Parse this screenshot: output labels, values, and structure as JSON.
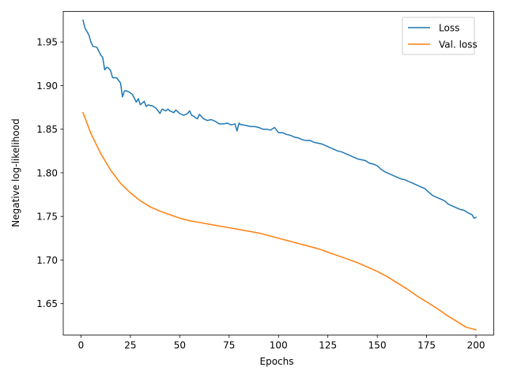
{
  "chart_data": {
    "type": "line",
    "title": "",
    "xlabel": "Epochs",
    "ylabel": "Negative log-likelihood",
    "xlim": [
      -9,
      209
    ],
    "ylim": [
      1.614,
      1.985
    ],
    "x_ticks": [
      0,
      25,
      50,
      75,
      100,
      125,
      150,
      175,
      200
    ],
    "x_tick_labels": [
      "0",
      "25",
      "50",
      "75",
      "100",
      "125",
      "150",
      "175",
      "200"
    ],
    "y_ticks": [
      1.65,
      1.7,
      1.75,
      1.8,
      1.85,
      1.9,
      1.95
    ],
    "y_tick_labels": [
      "1.65",
      "1.70",
      "1.75",
      "1.80",
      "1.85",
      "1.90",
      "1.95"
    ],
    "grid": false,
    "legend": {
      "position": "top-right",
      "entries": [
        "Loss",
        "Val. loss"
      ]
    },
    "series": [
      {
        "name": "Loss",
        "color": "#1f77b4",
        "x": [
          1,
          2,
          3,
          4,
          5,
          6,
          8,
          10,
          11,
          12,
          13,
          14,
          15,
          16,
          18,
          20,
          21,
          22,
          23,
          24,
          26,
          28,
          29,
          30,
          31,
          32,
          33,
          34,
          35,
          36,
          38,
          40,
          41,
          42,
          43,
          44,
          45,
          46,
          47,
          48,
          50,
          52,
          54,
          55,
          56,
          57,
          58,
          59,
          60,
          62,
          64,
          66,
          68,
          70,
          72,
          74,
          76,
          78,
          79,
          80,
          81,
          82,
          84,
          86,
          88,
          90,
          92,
          94,
          96,
          98,
          100,
          102,
          104,
          106,
          108,
          110,
          112,
          114,
          116,
          118,
          120,
          122,
          124,
          126,
          128,
          130,
          132,
          134,
          136,
          138,
          140,
          142,
          144,
          146,
          148,
          150,
          152,
          154,
          156,
          158,
          160,
          162,
          164,
          166,
          168,
          170,
          172,
          174,
          176,
          178,
          180,
          182,
          184,
          186,
          188,
          190,
          192,
          194,
          196,
          198,
          199,
          200
        ],
        "values": [
          1.975,
          1.966,
          1.962,
          1.958,
          1.95,
          1.945,
          1.944,
          1.935,
          1.932,
          1.918,
          1.921,
          1.92,
          1.917,
          1.909,
          1.909,
          1.903,
          1.887,
          1.894,
          1.894,
          1.893,
          1.89,
          1.881,
          1.885,
          1.878,
          1.88,
          1.882,
          1.876,
          1.878,
          1.877,
          1.877,
          1.874,
          1.868,
          1.873,
          1.872,
          1.871,
          1.873,
          1.871,
          1.87,
          1.869,
          1.872,
          1.868,
          1.866,
          1.868,
          1.871,
          1.866,
          1.865,
          1.863,
          1.862,
          1.867,
          1.862,
          1.86,
          1.861,
          1.859,
          1.856,
          1.856,
          1.857,
          1.855,
          1.856,
          1.848,
          1.857,
          1.855,
          1.855,
          1.854,
          1.853,
          1.853,
          1.852,
          1.85,
          1.85,
          1.849,
          1.852,
          1.846,
          1.846,
          1.844,
          1.843,
          1.841,
          1.84,
          1.838,
          1.837,
          1.837,
          1.835,
          1.834,
          1.833,
          1.831,
          1.829,
          1.827,
          1.825,
          1.824,
          1.822,
          1.82,
          1.818,
          1.816,
          1.815,
          1.814,
          1.811,
          1.81,
          1.808,
          1.804,
          1.801,
          1.799,
          1.797,
          1.795,
          1.793,
          1.792,
          1.79,
          1.788,
          1.786,
          1.784,
          1.782,
          1.778,
          1.774,
          1.772,
          1.77,
          1.768,
          1.764,
          1.762,
          1.76,
          1.758,
          1.757,
          1.754,
          1.752,
          1.748,
          1.749
        ]
      },
      {
        "name": "Val. loss",
        "color": "#ff7f0e",
        "x": [
          1,
          5,
          10,
          15,
          20,
          25,
          30,
          35,
          40,
          45,
          50,
          55,
          60,
          65,
          70,
          75,
          80,
          85,
          90,
          95,
          100,
          105,
          110,
          115,
          120,
          125,
          130,
          135,
          140,
          145,
          150,
          155,
          160,
          165,
          170,
          175,
          180,
          185,
          190,
          195,
          200
        ],
        "values": [
          1.869,
          1.845,
          1.822,
          1.803,
          1.788,
          1.777,
          1.768,
          1.761,
          1.756,
          1.752,
          1.748,
          1.745,
          1.743,
          1.741,
          1.739,
          1.737,
          1.735,
          1.733,
          1.731,
          1.728,
          1.725,
          1.722,
          1.719,
          1.716,
          1.713,
          1.709,
          1.705,
          1.701,
          1.697,
          1.692,
          1.687,
          1.681,
          1.674,
          1.667,
          1.659,
          1.652,
          1.645,
          1.637,
          1.63,
          1.623,
          1.62
        ]
      }
    ]
  }
}
